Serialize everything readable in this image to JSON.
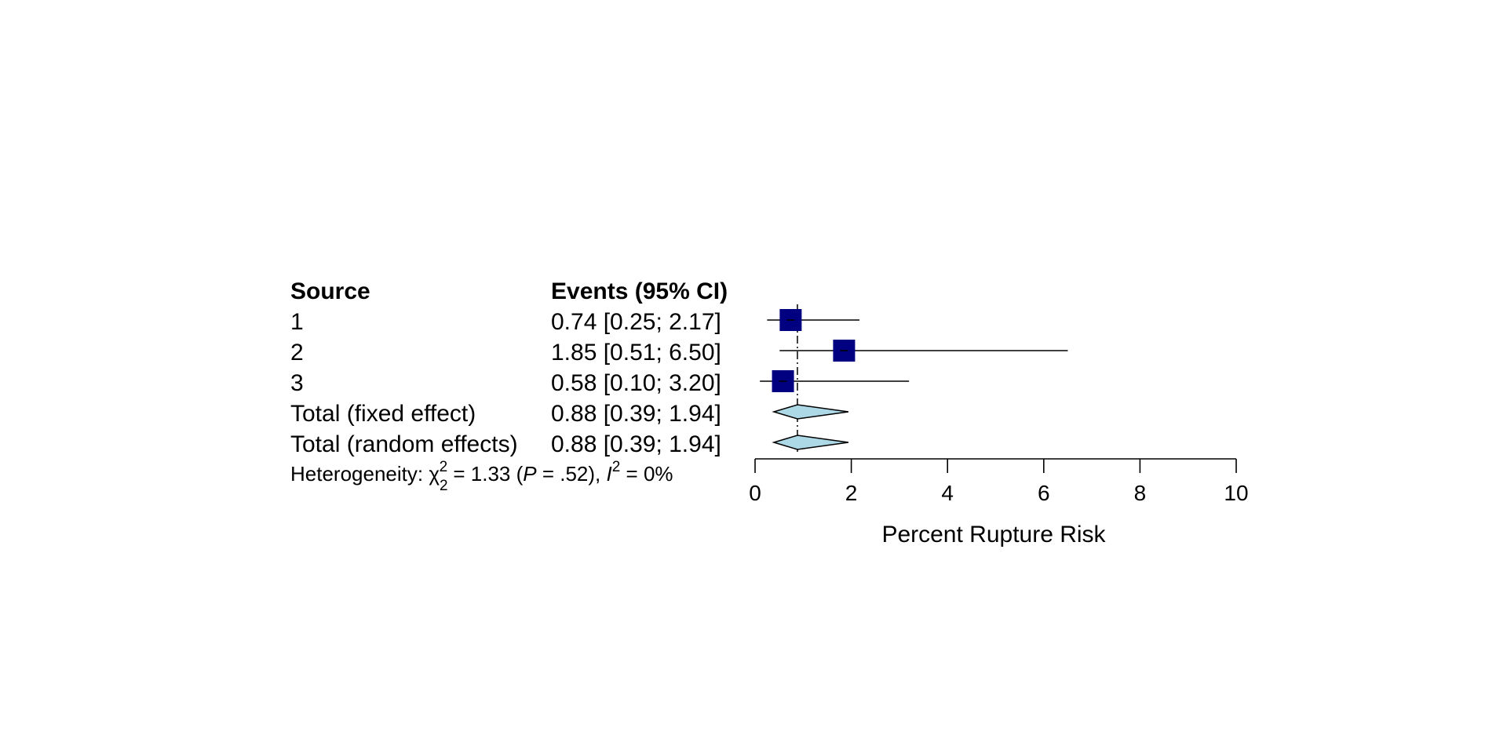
{
  "columns": {
    "source_header": "Source",
    "ci_header": "Events (95% CI)"
  },
  "rows": [
    {
      "source": "1",
      "ci_text": "0.74 [0.25; 2.17]"
    },
    {
      "source": "2",
      "ci_text": "1.85 [0.51; 6.50]"
    },
    {
      "source": "3",
      "ci_text": "0.58 [0.10; 3.20]"
    },
    {
      "source": "Total (fixed effect)",
      "ci_text": "0.88 [0.39; 1.94]"
    },
    {
      "source": "Total (random effects)",
      "ci_text": "0.88 [0.39; 1.94]"
    }
  ],
  "heterogeneity": {
    "prefix": "Heterogeneity: ",
    "chi_symbol": "χ",
    "chi_sub": "2",
    "chi_sup": "2",
    "chi_value": " = 1.33 (",
    "p_symbol": "P",
    "p_value": " = .52), ",
    "i_symbol": "I",
    "i_sup": "2",
    "i_value": " = 0%"
  },
  "colors": {
    "study_square": "#000080",
    "pooled_diamond": "#add8e6",
    "line": "#000000"
  },
  "chart_data": {
    "type": "forest",
    "xlabel": "Percent Rupture Risk",
    "xlim": [
      0,
      10
    ],
    "xticks": [
      "0",
      "2",
      "4",
      "6",
      "8",
      "10"
    ],
    "reference_line": 0.88,
    "studies": [
      {
        "label": "1",
        "estimate": 0.74,
        "lower": 0.25,
        "upper": 2.17
      },
      {
        "label": "2",
        "estimate": 1.85,
        "lower": 0.51,
        "upper": 6.5
      },
      {
        "label": "3",
        "estimate": 0.58,
        "lower": 0.1,
        "upper": 3.2
      }
    ],
    "pooled": [
      {
        "label": "Total (fixed effect)",
        "estimate": 0.88,
        "lower": 0.39,
        "upper": 1.94
      },
      {
        "label": "Total (random effects)",
        "estimate": 0.88,
        "lower": 0.39,
        "upper": 1.94
      }
    ]
  }
}
